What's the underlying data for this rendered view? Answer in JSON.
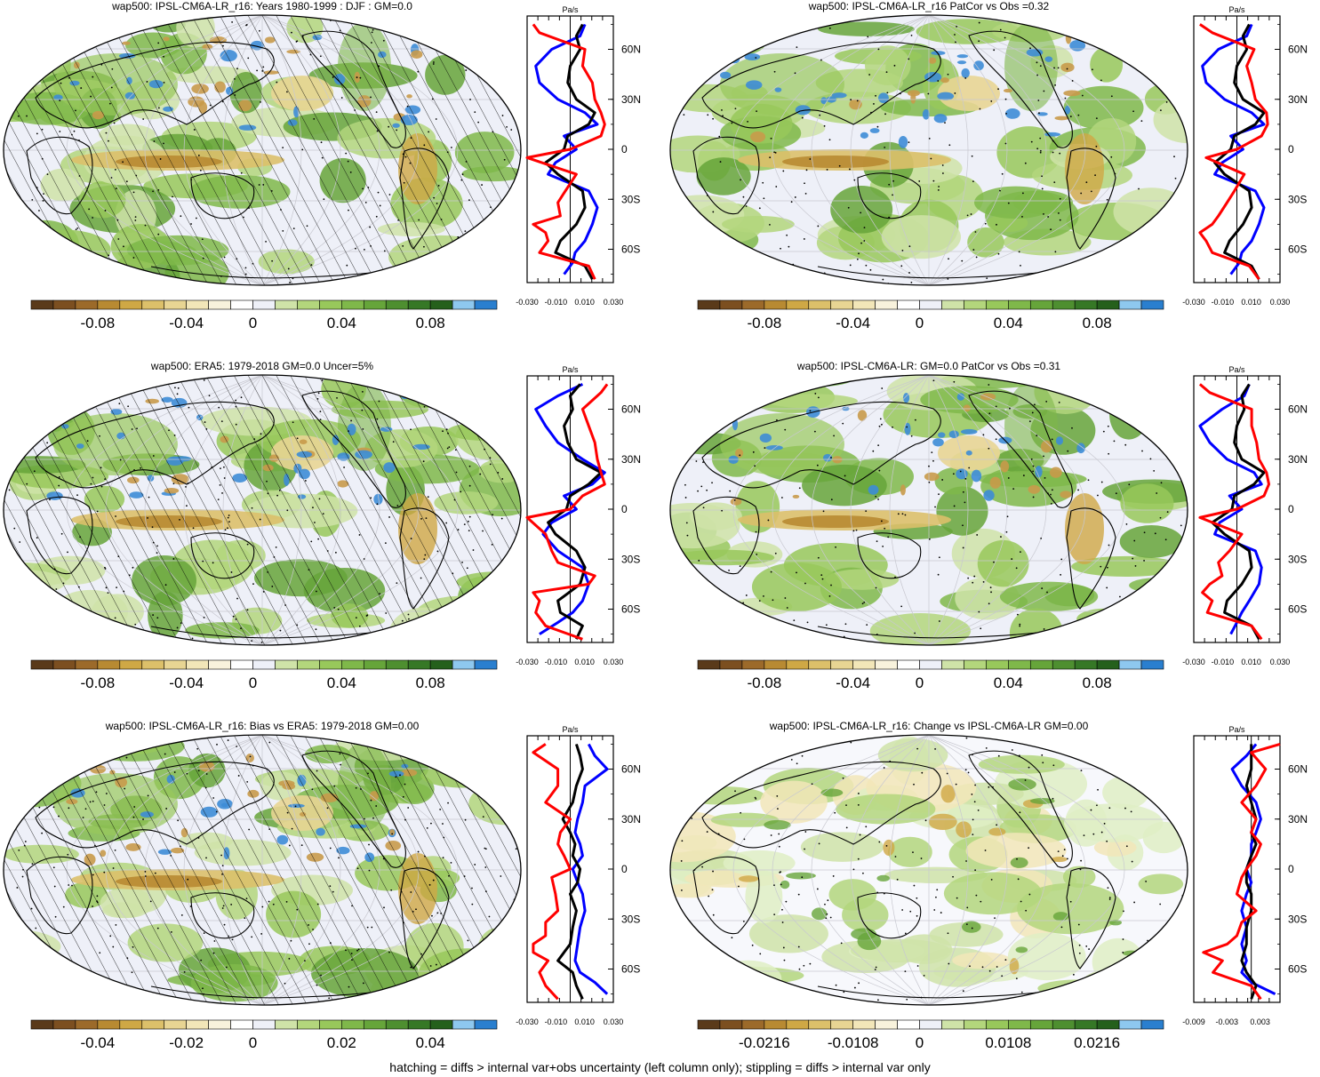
{
  "colors": {
    "palette": [
      "#5a3a1a",
      "#7c4f20",
      "#9c6a2a",
      "#b88a32",
      "#cfa845",
      "#dcc06a",
      "#e8d593",
      "#f2e6b8",
      "#f8f2dc",
      "#ffffff",
      "#eef0f8",
      "#cfe3a8",
      "#b3d67c",
      "#98c85b",
      "#7fb84a",
      "#66a53a",
      "#4e8f30",
      "#367826",
      "#25601c",
      "#8ec8ef",
      "#2a7fcf"
    ],
    "obs_line": "#0000ff",
    "model_line": "#000000",
    "bias_line": "#ff0000",
    "land_fill": "#9bc862",
    "desc_fill": "#c89a4a",
    "asc_fill": "#3d8cd6"
  },
  "footer": "hatching = diffs > internal var+obs uncertainty (left column only); stippling = diffs > internal var only",
  "profile": {
    "units": "Pa/s",
    "lat_labels": [
      "60N",
      "30N",
      "0",
      "30S",
      "60S"
    ],
    "lat_values": [
      60,
      30,
      0,
      -30,
      -60
    ]
  },
  "panels": [
    {
      "id": "p1",
      "title": "wap500: IPSL-CM6A-LR_r16: Years 1980-1999 : DJF : GM=0.0",
      "hatch": true,
      "cb_labels": [
        "-0.08",
        "-0.04",
        "0",
        "0.04",
        "0.08"
      ],
      "x_labels": [
        "-0.030",
        "-0.010",
        "0.010",
        "0.030"
      ],
      "x_lim": [
        -0.035,
        0.035
      ]
    },
    {
      "id": "p2",
      "title": "wap500: IPSL-CM6A-LR_r16 PatCor vs Obs =0.32",
      "hatch": false,
      "cb_labels": [
        "-0.08",
        "-0.04",
        "0",
        "0.04",
        "0.08"
      ],
      "x_labels": [
        "-0.030",
        "-0.010",
        "0.010",
        "0.030"
      ],
      "x_lim": [
        -0.035,
        0.035
      ]
    },
    {
      "id": "p3",
      "title": "wap500: ERA5: 1979-2018 GM=0.0 Uncer=5%",
      "hatch": true,
      "cb_labels": [
        "-0.08",
        "-0.04",
        "0",
        "0.04",
        "0.08"
      ],
      "x_labels": [
        "-0.030",
        "-0.010",
        "0.010",
        "0.030"
      ],
      "x_lim": [
        -0.035,
        0.035
      ]
    },
    {
      "id": "p4",
      "title": "wap500: IPSL-CM6A-LR: GM=0.0 PatCor vs Obs =0.31",
      "hatch": false,
      "cb_labels": [
        "-0.08",
        "-0.04",
        "0",
        "0.04",
        "0.08"
      ],
      "x_labels": [
        "-0.030",
        "-0.010",
        "0.010",
        "0.030"
      ],
      "x_lim": [
        -0.035,
        0.035
      ]
    },
    {
      "id": "p5",
      "title": "wap500: IPSL-CM6A-LR_r16: Bias vs ERA5: 1979-2018 GM=0.00",
      "hatch": true,
      "cb_labels": [
        "-0.04",
        "-0.02",
        "0",
        "0.02",
        "0.04"
      ],
      "x_labels": [
        "-0.030",
        "-0.010",
        "0.010",
        "0.030"
      ],
      "x_lim": [
        -0.035,
        0.035
      ]
    },
    {
      "id": "p6",
      "title": "wap500: IPSL-CM6A-LR_r16: Change vs IPSL-CM6A-LR GM=0.00",
      "hatch": false,
      "cb_labels": [
        "-0.0216",
        "-0.0108",
        "0",
        "0.0108",
        "0.0216"
      ],
      "x_labels": [
        "-0.009",
        "-0.003",
        "0.003"
      ],
      "x_lim": [
        -0.012,
        0.006
      ]
    }
  ],
  "chart_data": [
    {
      "type": "line",
      "panel": "p1",
      "title": "wap500: IPSL-CM6A-LR_r16: Years 1980-1999 : DJF : GM=0.0",
      "xlabel": "Pa/s",
      "ylabel": "",
      "xlim": [
        -0.035,
        0.035
      ],
      "ylim": [
        -80,
        80
      ],
      "series": [
        {
          "color": "blue",
          "y": [
            -75,
            -68,
            -62,
            -55,
            -45,
            -35,
            -25,
            -15,
            -8,
            0,
            8,
            15,
            22,
            30,
            40,
            50,
            60,
            68,
            75
          ],
          "values": [
            -0.005,
            0.002,
            0.004,
            0.012,
            0.018,
            0.022,
            0.015,
            -0.018,
            -0.012,
            0.005,
            -0.005,
            0.022,
            0.012,
            -0.01,
            -0.025,
            -0.028,
            -0.015,
            0.008,
            0.012
          ]
        },
        {
          "color": "black",
          "y": [
            -78,
            -70,
            -62,
            -55,
            -45,
            -35,
            -25,
            -15,
            -8,
            0,
            8,
            15,
            22,
            30,
            40,
            50,
            60,
            68,
            75
          ],
          "values": [
            0.018,
            0.012,
            -0.012,
            -0.008,
            0.005,
            0.012,
            0.01,
            -0.01,
            -0.02,
            -0.005,
            -0.002,
            0.015,
            0.02,
            0.005,
            -0.002,
            0.0,
            0.008,
            0.005,
            0.01
          ]
        },
        {
          "color": "red",
          "y": [
            -78,
            -70,
            -62,
            -55,
            -50,
            -45,
            -40,
            -32,
            -25,
            -15,
            -5,
            0,
            8,
            15,
            22,
            30,
            40,
            50,
            60,
            70,
            75
          ],
          "values": [
            0.02,
            0.015,
            -0.025,
            -0.018,
            -0.02,
            -0.03,
            -0.008,
            -0.01,
            -0.004,
            0.005,
            -0.035,
            0.0,
            0.025,
            0.028,
            0.025,
            0.02,
            0.018,
            0.01,
            0.012,
            -0.025,
            -0.03
          ]
        }
      ]
    },
    {
      "type": "line",
      "panel": "p2",
      "title": "wap500: IPSL-CM6A-LR_r16 PatCor vs Obs =0.32",
      "xlabel": "Pa/s",
      "ylabel": "",
      "xlim": [
        -0.035,
        0.035
      ],
      "ylim": [
        -80,
        80
      ],
      "series": [
        {
          "color": "blue",
          "y": [
            -75,
            -68,
            -62,
            -55,
            -45,
            -35,
            -25,
            -15,
            -8,
            0,
            8,
            15,
            22,
            30,
            40,
            50,
            60,
            68,
            75
          ],
          "values": [
            -0.005,
            0.002,
            0.004,
            0.012,
            0.018,
            0.022,
            0.015,
            -0.018,
            -0.012,
            0.005,
            -0.005,
            0.022,
            0.012,
            -0.01,
            -0.025,
            -0.028,
            -0.015,
            0.008,
            0.012
          ]
        },
        {
          "color": "black",
          "y": [
            -78,
            -70,
            -62,
            -55,
            -45,
            -35,
            -25,
            -15,
            -8,
            0,
            8,
            15,
            22,
            30,
            40,
            50,
            60,
            68,
            75
          ],
          "values": [
            0.018,
            0.012,
            -0.01,
            -0.006,
            0.005,
            0.012,
            0.01,
            -0.01,
            -0.018,
            -0.005,
            -0.002,
            0.015,
            0.022,
            0.005,
            -0.002,
            0.0,
            0.008,
            0.005,
            0.01
          ]
        },
        {
          "color": "red",
          "y": [
            -78,
            -70,
            -62,
            -55,
            -50,
            -45,
            -40,
            -32,
            -25,
            -15,
            -5,
            0,
            8,
            15,
            22,
            30,
            40,
            50,
            60,
            70,
            75
          ],
          "values": [
            0.018,
            0.01,
            -0.02,
            -0.025,
            -0.03,
            -0.02,
            -0.015,
            -0.008,
            -0.002,
            0.006,
            -0.025,
            0.0,
            0.02,
            0.025,
            0.024,
            0.015,
            0.012,
            0.008,
            0.014,
            -0.02,
            -0.03
          ]
        }
      ]
    },
    {
      "type": "line",
      "panel": "p3",
      "title": "wap500: ERA5: 1979-2018 GM=0.0 Uncer=5%",
      "xlabel": "Pa/s",
      "ylabel": "",
      "xlim": [
        -0.035,
        0.035
      ],
      "ylim": [
        -80,
        80
      ],
      "series": [
        {
          "color": "blue",
          "y": [
            -75,
            -68,
            -62,
            -55,
            -45,
            -35,
            -25,
            -15,
            -8,
            0,
            8,
            15,
            22,
            30,
            40,
            50,
            60,
            68,
            75
          ],
          "values": [
            -0.025,
            -0.01,
            0.002,
            0.01,
            0.015,
            0.01,
            -0.01,
            -0.022,
            -0.015,
            0.005,
            -0.005,
            0.018,
            0.028,
            0.01,
            -0.01,
            -0.02,
            -0.028,
            -0.01,
            0.01
          ]
        },
        {
          "color": "black",
          "y": [
            -78,
            -70,
            -62,
            -55,
            -45,
            -35,
            -25,
            -15,
            -8,
            0,
            8,
            15,
            22,
            30,
            40,
            50,
            60,
            68,
            75
          ],
          "values": [
            0.005,
            0.01,
            -0.008,
            -0.01,
            0.008,
            0.012,
            0.005,
            -0.012,
            -0.018,
            -0.003,
            0.0,
            0.015,
            0.025,
            0.005,
            -0.002,
            -0.005,
            0.002,
            0.0,
            0.008
          ]
        },
        {
          "color": "red",
          "y": [
            -78,
            -70,
            -62,
            -55,
            -50,
            -45,
            -40,
            -32,
            -25,
            -15,
            -5,
            0,
            8,
            15,
            22,
            30,
            40,
            50,
            60,
            70,
            75
          ],
          "values": [
            0.01,
            -0.02,
            -0.028,
            -0.025,
            -0.03,
            0.015,
            0.02,
            -0.01,
            -0.015,
            -0.02,
            -0.035,
            0.0,
            0.01,
            0.028,
            0.025,
            0.022,
            0.02,
            0.015,
            0.01,
            0.025,
            0.03
          ]
        }
      ]
    },
    {
      "type": "line",
      "panel": "p4",
      "title": "wap500: IPSL-CM6A-LR: GM=0.0 PatCor vs Obs =0.31",
      "xlabel": "Pa/s",
      "ylabel": "",
      "xlim": [
        -0.035,
        0.035
      ],
      "ylim": [
        -80,
        80
      ],
      "series": [
        {
          "color": "blue",
          "y": [
            -75,
            -68,
            -62,
            -55,
            -45,
            -35,
            -25,
            -15,
            -8,
            0,
            8,
            15,
            22,
            30,
            40,
            50,
            60,
            68,
            75
          ],
          "values": [
            -0.005,
            0.0,
            0.004,
            0.01,
            0.018,
            0.02,
            0.015,
            -0.018,
            -0.014,
            0.004,
            -0.006,
            0.02,
            0.014,
            -0.008,
            -0.022,
            -0.03,
            -0.012,
            0.006,
            0.01
          ]
        },
        {
          "color": "black",
          "y": [
            -78,
            -70,
            -62,
            -55,
            -45,
            -35,
            -25,
            -15,
            -8,
            0,
            8,
            15,
            22,
            30,
            40,
            50,
            60,
            68,
            75
          ],
          "values": [
            0.018,
            0.012,
            -0.01,
            -0.008,
            0.004,
            0.012,
            0.01,
            -0.01,
            -0.02,
            -0.004,
            -0.002,
            0.014,
            0.022,
            0.004,
            -0.002,
            0.0,
            0.006,
            0.004,
            0.01
          ]
        },
        {
          "color": "red",
          "y": [
            -78,
            -70,
            -62,
            -55,
            -50,
            -45,
            -40,
            -32,
            -25,
            -15,
            -5,
            0,
            8,
            15,
            22,
            30,
            40,
            50,
            60,
            70,
            75
          ],
          "values": [
            0.02,
            0.012,
            -0.024,
            -0.02,
            -0.028,
            -0.022,
            -0.012,
            -0.015,
            -0.006,
            0.004,
            -0.03,
            0.0,
            0.022,
            0.026,
            0.024,
            0.018,
            0.016,
            0.012,
            0.012,
            -0.022,
            -0.03
          ]
        }
      ]
    },
    {
      "type": "line",
      "panel": "p5",
      "title": "wap500: IPSL-CM6A-LR_r16: Bias vs ERA5: 1979-2018 GM=0.00",
      "xlabel": "Pa/s",
      "ylabel": "",
      "xlim": [
        -0.035,
        0.035
      ],
      "ylim": [
        -80,
        80
      ],
      "series": [
        {
          "color": "blue",
          "y": [
            -75,
            -68,
            -62,
            -55,
            -45,
            -35,
            -25,
            -15,
            -8,
            0,
            8,
            15,
            22,
            30,
            40,
            50,
            60,
            68,
            75
          ],
          "values": [
            0.03,
            0.02,
            0.008,
            0.004,
            0.006,
            0.008,
            0.012,
            0.01,
            0.006,
            0.002,
            0.01,
            0.008,
            0.004,
            0.006,
            0.01,
            0.012,
            0.03,
            0.02,
            0.015
          ]
        },
        {
          "color": "black",
          "y": [
            -78,
            -70,
            -62,
            -55,
            -45,
            -35,
            -25,
            -15,
            -8,
            0,
            8,
            15,
            22,
            30,
            40,
            50,
            60,
            68,
            75
          ],
          "values": [
            0.01,
            0.005,
            0.002,
            -0.01,
            0.0,
            0.002,
            0.005,
            0.0,
            0.006,
            0.008,
            0.002,
            0.004,
            0.0,
            -0.006,
            0.002,
            0.005,
            0.01,
            0.008,
            0.005
          ]
        },
        {
          "color": "red",
          "y": [
            -78,
            -70,
            -62,
            -55,
            -50,
            -45,
            -40,
            -32,
            -25,
            -15,
            -5,
            0,
            8,
            15,
            22,
            30,
            40,
            50,
            60,
            70,
            75
          ],
          "values": [
            -0.01,
            -0.02,
            -0.025,
            -0.018,
            -0.03,
            -0.03,
            -0.02,
            -0.02,
            -0.01,
            -0.012,
            -0.015,
            0.0,
            -0.005,
            -0.01,
            -0.008,
            0.0,
            -0.02,
            -0.01,
            -0.01,
            -0.03,
            -0.02
          ]
        }
      ]
    },
    {
      "type": "line",
      "panel": "p6",
      "title": "wap500: IPSL-CM6A-LR_r16: Change vs IPSL-CM6A-LR GM=0.00",
      "xlabel": "Pa/s",
      "ylabel": "",
      "xlim": [
        -0.012,
        0.006
      ],
      "ylim": [
        -80,
        80
      ],
      "series": [
        {
          "color": "blue",
          "y": [
            -75,
            -68,
            -62,
            -55,
            -45,
            -35,
            -25,
            -15,
            -8,
            0,
            8,
            15,
            22,
            30,
            40,
            50,
            60,
            68,
            75
          ],
          "values": [
            0.005,
            0.0,
            -0.002,
            -0.001,
            -0.002,
            -0.001,
            -0.002,
            -0.001,
            0.0,
            -0.001,
            0.0,
            0.0,
            0.001,
            0.002,
            0.001,
            -0.002,
            -0.004,
            -0.001,
            0.001
          ]
        },
        {
          "color": "black",
          "y": [
            -78,
            -70,
            -62,
            -55,
            -45,
            -35,
            -25,
            -15,
            -8,
            0,
            8,
            15,
            22,
            30,
            40,
            50,
            60,
            68,
            75
          ],
          "values": [
            0.0,
            0.001,
            -0.001,
            -0.002,
            -0.001,
            -0.001,
            0.0,
            0.0,
            -0.001,
            -0.001,
            0.0,
            0.001,
            0.0,
            0.001,
            0.0,
            -0.001,
            0.0,
            0.0,
            0.0
          ]
        },
        {
          "color": "red",
          "y": [
            -78,
            -70,
            -62,
            -55,
            -50,
            -45,
            -40,
            -32,
            -25,
            -15,
            -5,
            0,
            8,
            15,
            22,
            30,
            40,
            50,
            60,
            70,
            75
          ],
          "values": [
            0.002,
            0.0,
            -0.008,
            -0.006,
            -0.01,
            -0.005,
            -0.003,
            -0.002,
            0.001,
            -0.003,
            -0.002,
            -0.001,
            0.001,
            0.002,
            0.0,
            0.001,
            -0.002,
            0.001,
            0.003,
            0.0,
            0.006
          ]
        }
      ]
    }
  ]
}
